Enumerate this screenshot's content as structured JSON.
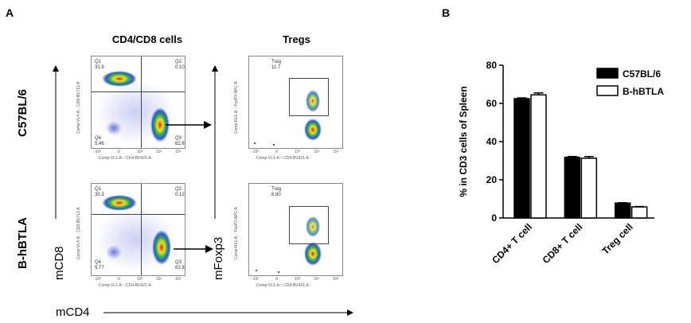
{
  "panels": {
    "a_label": "A",
    "b_label": "B"
  },
  "flow": {
    "col1_title": "CD4/CD8 cells",
    "col2_title": "Tregs",
    "rows": [
      {
        "label": "C57BL/6",
        "q1_name": "Q1",
        "q1_val": "31.9",
        "q2_name": "Q2",
        "q2_val": "0.10",
        "q3_name": "Q3",
        "q3_val": "62.6",
        "q4_name": "Q4",
        "q4_val": "5.46",
        "treg_name": "Treg",
        "treg_val": "11.7"
      },
      {
        "label": "B-hBTLA",
        "q1_name": "Q1",
        "q1_val": "30.3",
        "q2_name": "Q2",
        "q2_val": "0.12",
        "q3_name": "Q3",
        "q3_val": "63.8",
        "q4_name": "Q4",
        "q4_val": "5.77",
        "treg_name": "Treg",
        "treg_val": "8.90"
      }
    ],
    "quad_xlabel": "Comp-VL1-A :: CD4-BV421-A",
    "quad_ylabel": "Comp-VL4-A :: CD8-BV711-A",
    "treg_xlabel": "Comp-VL1-A :: CD4-BV421-A",
    "treg_ylabel": "Comp-RL1-A :: FoxP3-APC-A",
    "y_axis_left": "mCD8",
    "y_axis_mid": "mFoxp3",
    "x_axis_bottom": "mCD4",
    "tick_labels": [
      "-10³",
      "0",
      "10³",
      "10⁴",
      "10⁵"
    ]
  },
  "chart_data": {
    "type": "bar",
    "categories": [
      "CD4+ T cell",
      "CD8+ T cell",
      "Treg cell"
    ],
    "series": [
      {
        "name": "C57BL/6",
        "values": [
          62.5,
          31.8,
          7.8
        ],
        "errors": [
          0.4,
          0.4,
          0.2
        ],
        "fill": "#000000"
      },
      {
        "name": "B-hBTLA",
        "values": [
          64.5,
          31.3,
          5.8
        ],
        "errors": [
          1.0,
          0.9,
          0.2
        ],
        "fill": "#ffffff"
      }
    ],
    "ylabel": "% in CD3 cells of Spleen",
    "xlabel": "",
    "ylim": [
      0,
      80
    ],
    "yticks": [
      0,
      20,
      40,
      60,
      80
    ],
    "legend": "top-right"
  }
}
